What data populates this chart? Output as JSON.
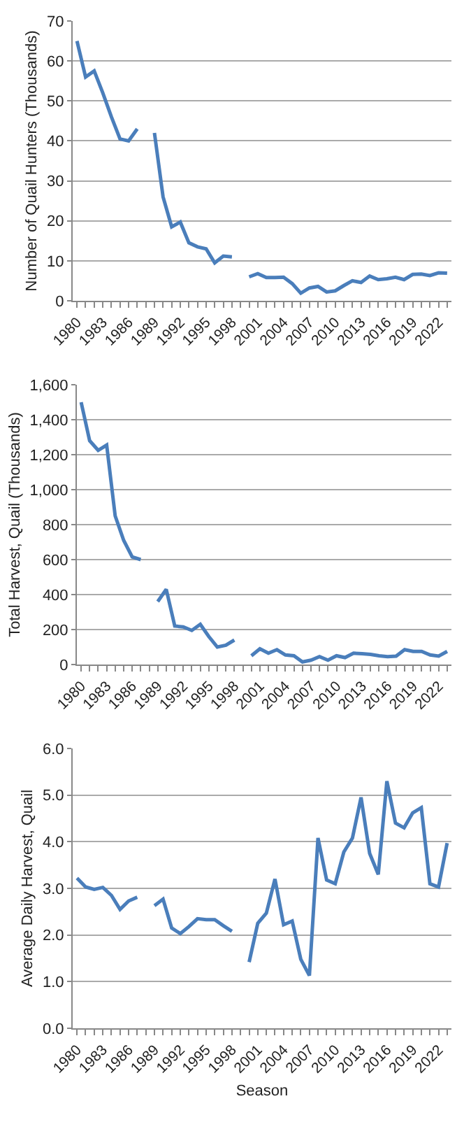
{
  "chart_data": [
    {
      "type": "line",
      "ylabel": "Number of Quail Hunters (Thousands)",
      "color": "#4a7ebb",
      "grid": "y",
      "categories": [
        "1980",
        null,
        null,
        "1983",
        null,
        null,
        "1986",
        null,
        null,
        "1989",
        null,
        null,
        "1992",
        null,
        null,
        "1995",
        null,
        null,
        "1998",
        null,
        null,
        "2001",
        null,
        null,
        "2004",
        null,
        null,
        "2007",
        null,
        null,
        "2010",
        null,
        null,
        "2013",
        null,
        null,
        "2016",
        null,
        null,
        "2019",
        null,
        null,
        "2022",
        null
      ],
      "values": [
        65,
        56,
        57.5,
        52,
        46,
        40.5,
        40,
        43,
        null,
        42,
        26,
        18.5,
        19.7,
        14.5,
        13.5,
        13,
        9.5,
        11.2,
        11,
        null,
        6,
        6.8,
        5.8,
        5.8,
        5.9,
        4.3,
        1.9,
        3.2,
        3.6,
        2.2,
        2.5,
        3.8,
        5,
        4.6,
        6.2,
        5.3,
        5.5,
        5.9,
        5.3,
        6.6,
        6.7,
        6.3,
        7,
        6.9
      ],
      "ylim": [
        0,
        70
      ],
      "yticks": [
        0,
        10,
        20,
        30,
        40,
        50,
        60,
        70
      ]
    },
    {
      "type": "line",
      "ylabel": "Total Harvest, Quail (Thousands)",
      "color": "#4a7ebb",
      "grid": "y",
      "categories": [
        "1980",
        null,
        null,
        "1983",
        null,
        null,
        "1986",
        null,
        null,
        "1989",
        null,
        null,
        "1992",
        null,
        null,
        "1995",
        null,
        null,
        "1998",
        null,
        null,
        "2001",
        null,
        null,
        "2004",
        null,
        null,
        "2007",
        null,
        null,
        "2010",
        null,
        null,
        "2013",
        null,
        null,
        "2016",
        null,
        null,
        "2019",
        null,
        null,
        "2022",
        null
      ],
      "values": [
        1500,
        1280,
        1225,
        1255,
        850,
        710,
        615,
        600,
        null,
        360,
        430,
        220,
        215,
        195,
        230,
        160,
        100,
        110,
        140,
        null,
        50,
        90,
        65,
        85,
        55,
        50,
        15,
        25,
        45,
        25,
        50,
        40,
        65,
        62,
        58,
        50,
        45,
        48,
        85,
        75,
        75,
        55,
        48,
        75
      ],
      "ylim": [
        0,
        1600
      ],
      "yticks": [
        0,
        200,
        400,
        600,
        800,
        {
          "value": 1000,
          "label": "1,000"
        },
        {
          "value": 1200,
          "label": "1,200"
        },
        {
          "value": 1400,
          "label": "1,400"
        },
        {
          "value": 1600,
          "label": "1,600"
        }
      ]
    },
    {
      "type": "line",
      "ylabel": "Average Daily Harvest, Quail",
      "xlabel": "Season",
      "color": "#4a7ebb",
      "grid": "y",
      "categories": [
        "1980",
        null,
        null,
        "1983",
        null,
        null,
        "1986",
        null,
        null,
        "1989",
        null,
        null,
        "1992",
        null,
        null,
        "1995",
        null,
        null,
        "1998",
        null,
        null,
        "2001",
        null,
        null,
        "2004",
        null,
        null,
        "2007",
        null,
        null,
        "2010",
        null,
        null,
        "2013",
        null,
        null,
        "2016",
        null,
        null,
        "2019",
        null,
        null,
        "2022",
        null
      ],
      "values": [
        3.22,
        3.03,
        2.98,
        3.02,
        2.85,
        2.55,
        2.73,
        2.81,
        null,
        2.63,
        2.77,
        2.15,
        2.03,
        2.18,
        2.35,
        2.33,
        2.33,
        2.2,
        2.08,
        null,
        1.42,
        2.25,
        2.47,
        3.2,
        2.22,
        2.3,
        1.48,
        1.13,
        4.08,
        3.18,
        3.1,
        3.78,
        4.08,
        4.95,
        3.75,
        3.3,
        5.3,
        4.4,
        4.3,
        4.62,
        4.73,
        3.1,
        3.03,
        3.97
      ],
      "ylim": [
        0,
        6
      ],
      "yticks": [
        {
          "value": 0,
          "label": "0.0"
        },
        {
          "value": 1,
          "label": "1.0"
        },
        {
          "value": 2,
          "label": "2.0"
        },
        {
          "value": 3,
          "label": "3.0"
        },
        {
          "value": 4,
          "label": "4.0"
        },
        {
          "value": 5,
          "label": "5.0"
        },
        {
          "value": 6,
          "label": "6.0"
        }
      ]
    }
  ]
}
